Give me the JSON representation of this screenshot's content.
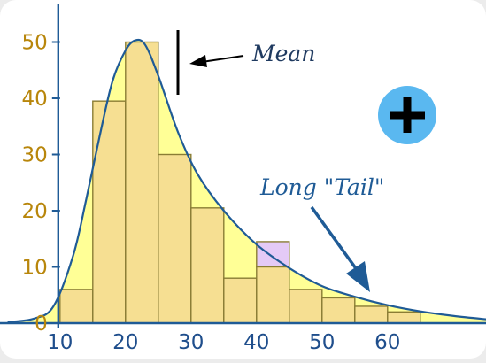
{
  "chart_data": {
    "type": "bar",
    "bin_edges": [
      10,
      15,
      20,
      25,
      30,
      35,
      40,
      45,
      50,
      55,
      60,
      65
    ],
    "values": [
      6,
      39.5,
      50,
      30,
      20.5,
      8,
      14.5,
      6,
      4.5,
      3,
      2
    ],
    "curve_values_at_bin_centers": [
      6,
      39.5,
      50,
      30,
      20.5,
      14,
      10,
      6,
      4.5,
      3,
      2
    ],
    "x_ticks": [
      10,
      20,
      30,
      40,
      50,
      60
    ],
    "y_ticks": [
      0,
      10,
      20,
      30,
      40,
      50
    ],
    "xlim": [
      2,
      78
    ],
    "ylim": [
      0,
      55
    ],
    "mean": 28,
    "annotations": {
      "mean": "Mean",
      "tail": "Long \"Tail\""
    },
    "colors": {
      "bar_fill": "#f6df92",
      "bar_edge": "#8a7d35",
      "excess_fill": "#e4caf6",
      "curve_fill": "#ffff96",
      "curve_stroke": "#1f5b96",
      "axis": "#1f5b96",
      "y_tick_label": "#b8860b",
      "x_tick_label": "#1f4e8c",
      "plus_button": "#5ab8f0"
    }
  },
  "controls": {
    "zoom_icon": "plus-icon"
  }
}
